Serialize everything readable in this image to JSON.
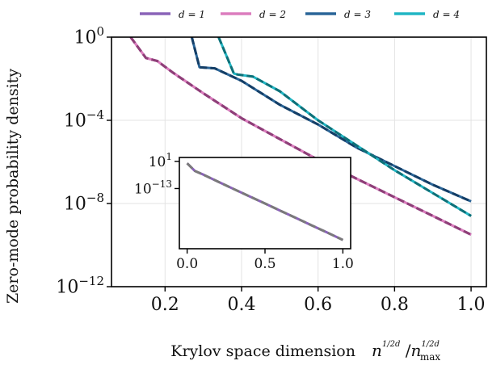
{
  "chart_data": [
    {
      "type": "line",
      "xlabel": "Krylov space dimension",
      "xlabel_math": {
        "base": "n",
        "exp_num": "1",
        "exp_den": "2d",
        "slash": "/",
        "base2": "n",
        "sub2": "max"
      },
      "ylabel": "Zero-mode probability density",
      "xlim": [
        0.06,
        1.04
      ],
      "ylim_log10": [
        -12,
        0
      ],
      "y_scale": "log",
      "grid": true,
      "x_ticks": [
        {
          "value": 0.2,
          "label": "0.2"
        },
        {
          "value": 0.4,
          "label": "0.4"
        },
        {
          "value": 0.6,
          "label": "0.6"
        },
        {
          "value": 0.8,
          "label": "0.8"
        },
        {
          "value": 1.0,
          "label": "1.0"
        }
      ],
      "y_ticks": [
        {
          "exp": 0,
          "base": "10",
          "sup": "0"
        },
        {
          "exp": -4,
          "base": "10",
          "sup": "−4"
        },
        {
          "exp": -8,
          "base": "10",
          "sup": "−8"
        },
        {
          "exp": -12,
          "base": "10",
          "sup": "−12"
        }
      ],
      "legend": {
        "placement": "top, outside",
        "entries": [
          {
            "label": "d = 1",
            "color": "#8a63b8"
          },
          {
            "label": "d = 2",
            "color": "#dc7dbd"
          },
          {
            "label": "d = 3",
            "color": "#2a6598"
          },
          {
            "label": "d = 4",
            "color": "#21b6c4"
          }
        ]
      },
      "series": [
        {
          "name": "d = 1",
          "color": "#8a63b8",
          "overlay_color": "#8e3f78",
          "x": [
            0.11,
            0.15,
            0.18,
            0.22,
            0.3,
            0.4,
            0.5,
            0.6,
            0.7,
            0.8,
            0.9,
            1.0
          ],
          "log10_y": [
            0.0,
            -1.0,
            -1.15,
            -1.7,
            -2.7,
            -3.9,
            -4.9,
            -5.9,
            -6.8,
            -7.7,
            -8.6,
            -9.5
          ]
        },
        {
          "name": "d = 2",
          "color": "#dc7dbd",
          "overlay_color": "#8e3f78",
          "x": [
            0.11,
            0.15,
            0.18,
            0.22,
            0.3,
            0.4,
            0.5,
            0.6,
            0.7,
            0.8,
            0.9,
            1.0
          ],
          "log10_y": [
            0.0,
            -1.0,
            -1.15,
            -1.7,
            -2.7,
            -3.9,
            -4.9,
            -5.9,
            -6.8,
            -7.7,
            -8.6,
            -9.5
          ]
        },
        {
          "name": "d = 3",
          "color": "#2a6598",
          "overlay_color": "#143e66",
          "x": [
            0.27,
            0.29,
            0.33,
            0.4,
            0.5,
            0.6,
            0.7,
            0.8,
            0.9,
            1.0
          ],
          "log10_y": [
            0.0,
            -1.45,
            -1.5,
            -2.1,
            -3.25,
            -4.2,
            -5.3,
            -6.2,
            -7.1,
            -7.9
          ]
        },
        {
          "name": "d = 4",
          "color": "#21b6c4",
          "overlay_color": "#0e7078",
          "x": [
            0.34,
            0.38,
            0.39,
            0.43,
            0.5,
            0.6,
            0.7,
            0.8,
            0.9,
            1.0
          ],
          "log10_y": [
            0.0,
            -1.75,
            -1.8,
            -1.9,
            -2.6,
            -4.0,
            -5.2,
            -6.4,
            -7.5,
            -8.6
          ]
        }
      ]
    },
    {
      "type": "line",
      "role": "inset",
      "y_scale": "log",
      "xlim": [
        -0.05,
        1.05
      ],
      "ylim_log10": [
        -44,
        3
      ],
      "x_ticks": [
        {
          "value": 0.0,
          "label": "0.0"
        },
        {
          "value": 0.5,
          "label": "0.5"
        },
        {
          "value": 1.0,
          "label": "1.0"
        }
      ],
      "y_ticks": [
        {
          "exp": 1,
          "base": "10",
          "sup": "1"
        },
        {
          "exp": -13,
          "base": "10",
          "sup": "−13"
        }
      ],
      "series": [
        {
          "color": "#8a63b8",
          "overlay_color": "#7a7a7a",
          "x": [
            0.0,
            0.05,
            0.1,
            0.2,
            0.3,
            0.4,
            0.5,
            0.6,
            0.7,
            0.8,
            0.9,
            1.0
          ],
          "log10_y": [
            0.0,
            -4.0,
            -5.7,
            -9.5,
            -13.3,
            -17.0,
            -20.7,
            -24.5,
            -28.2,
            -32.0,
            -35.7,
            -39.5
          ]
        }
      ]
    }
  ]
}
